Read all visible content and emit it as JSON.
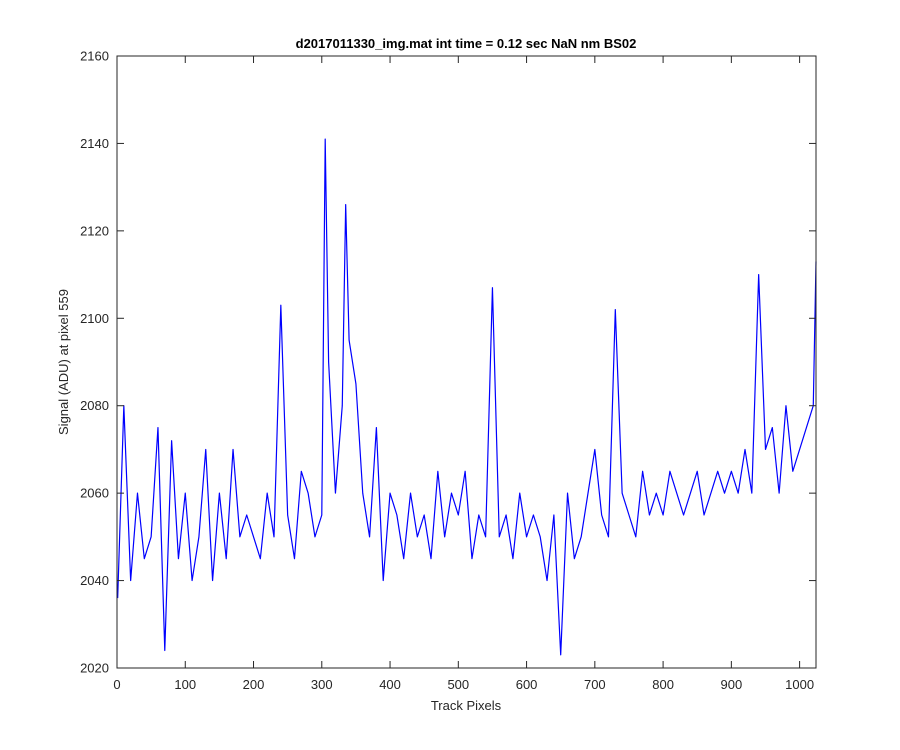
{
  "chart_data": {
    "type": "line",
    "title": "d2017011330_img.mat int time = 0.12 sec  NaN nm BS02",
    "xlabel": "Track Pixels",
    "ylabel": "Signal (ADU) at pixel 559",
    "xlim": [
      0,
      1024
    ],
    "ylim": [
      2020,
      2160
    ],
    "xticks": [
      0,
      100,
      200,
      300,
      400,
      500,
      600,
      700,
      800,
      900,
      1000
    ],
    "yticks": [
      2020,
      2040,
      2060,
      2080,
      2100,
      2120,
      2140,
      2160
    ],
    "grid": false,
    "legend": "none",
    "series": [
      {
        "color": "#0000ff",
        "x": [
          1,
          10,
          20,
          30,
          40,
          50,
          60,
          70,
          80,
          90,
          100,
          110,
          120,
          130,
          140,
          150,
          160,
          170,
          180,
          190,
          200,
          210,
          220,
          230,
          240,
          250,
          260,
          270,
          280,
          290,
          300,
          305,
          310,
          320,
          330,
          335,
          340,
          350,
          360,
          370,
          380,
          390,
          400,
          410,
          420,
          430,
          440,
          450,
          460,
          470,
          480,
          490,
          500,
          510,
          520,
          530,
          540,
          550,
          560,
          570,
          580,
          590,
          600,
          610,
          620,
          630,
          640,
          650,
          660,
          670,
          680,
          690,
          700,
          710,
          720,
          730,
          740,
          750,
          760,
          770,
          780,
          790,
          800,
          810,
          820,
          830,
          840,
          850,
          860,
          870,
          880,
          890,
          900,
          910,
          920,
          930,
          940,
          950,
          960,
          970,
          980,
          990,
          1000,
          1010,
          1020,
          1024
        ],
        "y": [
          2036,
          2080,
          2040,
          2060,
          2045,
          2050,
          2075,
          2024,
          2072,
          2045,
          2060,
          2040,
          2050,
          2070,
          2040,
          2060,
          2045,
          2070,
          2050,
          2055,
          2050,
          2045,
          2060,
          2050,
          2103,
          2055,
          2045,
          2065,
          2060,
          2050,
          2055,
          2141,
          2090,
          2060,
          2080,
          2126,
          2095,
          2085,
          2060,
          2050,
          2075,
          2040,
          2060,
          2055,
          2045,
          2060,
          2050,
          2055,
          2045,
          2065,
          2050,
          2060,
          2055,
          2065,
          2045,
          2055,
          2050,
          2107,
          2050,
          2055,
          2045,
          2060,
          2050,
          2055,
          2050,
          2040,
          2055,
          2023,
          2060,
          2045,
          2050,
          2060,
          2070,
          2055,
          2050,
          2102,
          2060,
          2055,
          2050,
          2065,
          2055,
          2060,
          2055,
          2065,
          2060,
          2055,
          2060,
          2065,
          2055,
          2060,
          2065,
          2060,
          2065,
          2060,
          2070,
          2060,
          2110,
          2070,
          2075,
          2060,
          2080,
          2065,
          2070,
          2075,
          2080,
          2113
        ]
      }
    ]
  }
}
